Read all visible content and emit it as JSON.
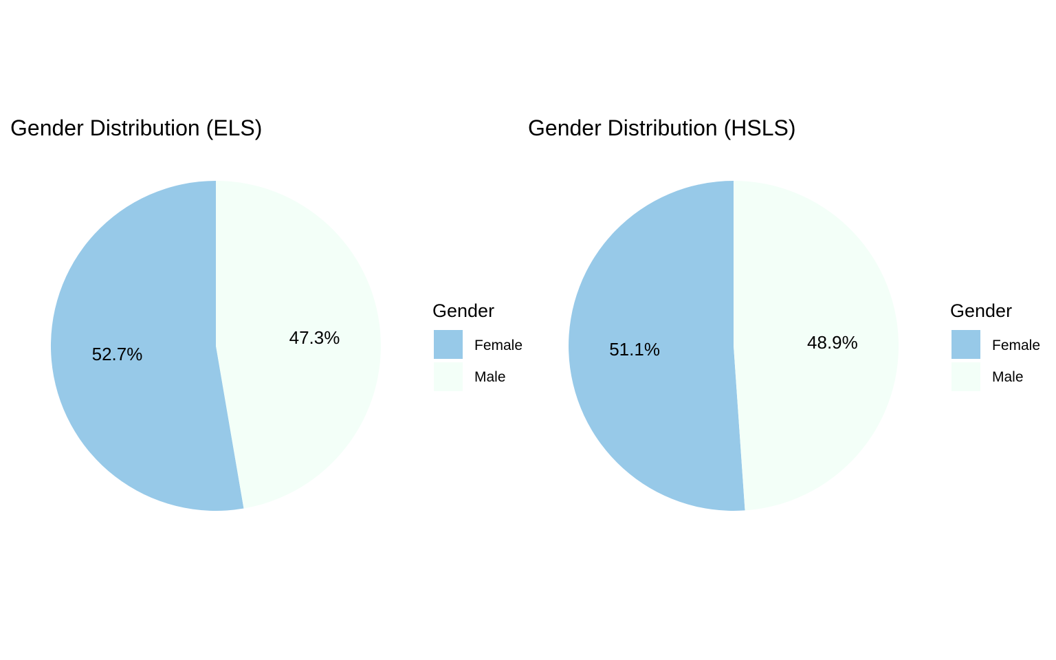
{
  "chart_data": [
    {
      "type": "pie",
      "title": "Gender Distribution (ELS)",
      "categories": [
        "Female",
        "Male"
      ],
      "values": [
        52.7,
        47.3
      ],
      "labels": [
        "52.7%",
        "47.3%"
      ],
      "colors": [
        "#97c9e8",
        "#f3fff8"
      ],
      "start_angle_deg": 0,
      "direction": "counterclockwise",
      "legend": {
        "title": "Gender",
        "placement": "right",
        "items": [
          "Female",
          "Male"
        ]
      }
    },
    {
      "type": "pie",
      "title": "Gender Distribution (HSLS)",
      "categories": [
        "Female",
        "Male"
      ],
      "values": [
        51.1,
        48.9
      ],
      "labels": [
        "51.1%",
        "48.9%"
      ],
      "colors": [
        "#97c9e8",
        "#f3fff8"
      ],
      "start_angle_deg": 0,
      "direction": "counterclockwise",
      "legend": {
        "title": "Gender",
        "placement": "right",
        "items": [
          "Female",
          "Male"
        ]
      }
    }
  ]
}
